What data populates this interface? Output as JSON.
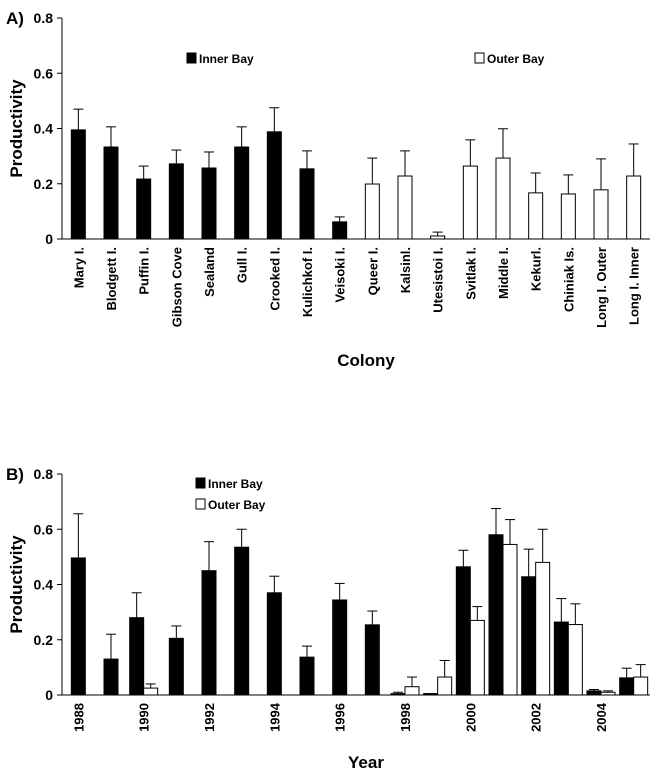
{
  "chart_data": [
    {
      "type": "bar",
      "panel_label": "A)",
      "ylabel": "Productivity",
      "xlabel": "Colony",
      "categories": [
        "Mary I.",
        "Blodgett I.",
        "Puffin I.",
        "Gibson Cove",
        "Sealand",
        "Gull I.",
        "Crooked I.",
        "Kulichkof I.",
        "Veisoki I.",
        "Queer I.",
        "Kalsinl.",
        "Utesistoi I.",
        "Svitlak I.",
        "Middle I.",
        "Kekurl.",
        "Chiniak Is.",
        "Long I. Outer",
        "Long I. Inner"
      ],
      "series": [
        {
          "name": "Inner Bay",
          "color": "#000000",
          "values": [
            0.395,
            0.333,
            0.217,
            0.272,
            0.257,
            0.333,
            0.388,
            0.254,
            0.062,
            null,
            null,
            null,
            null,
            null,
            null,
            null,
            null,
            null
          ],
          "errors": [
            0.075,
            0.073,
            0.047,
            0.05,
            0.058,
            0.073,
            0.087,
            0.065,
            0.018,
            null,
            null,
            null,
            null,
            null,
            null,
            null,
            null,
            null
          ]
        },
        {
          "name": "Outer Bay",
          "color": "#ffffff",
          "values": [
            null,
            null,
            null,
            null,
            null,
            null,
            null,
            null,
            null,
            0.199,
            0.228,
            0.011,
            0.264,
            0.293,
            0.167,
            0.163,
            0.178,
            0.228
          ],
          "errors": [
            null,
            null,
            null,
            null,
            null,
            null,
            null,
            null,
            null,
            0.094,
            0.091,
            0.014,
            0.095,
            0.106,
            0.072,
            0.069,
            0.112,
            0.116
          ]
        }
      ],
      "ylim": [
        0,
        0.8
      ],
      "yticks": [
        0,
        0.2,
        0.4,
        0.6,
        0.8
      ],
      "legend": "top-spread"
    },
    {
      "type": "bar",
      "panel_label": "B)",
      "ylabel": "Productivity",
      "xlabel": "Year",
      "categories": [
        "1988",
        null,
        "1990",
        null,
        "1992",
        null,
        "1994",
        null,
        "1996",
        null,
        "1998",
        null,
        "2000",
        null,
        "2002",
        null,
        "2004",
        null
      ],
      "series": [
        {
          "name": "Inner Bay",
          "color": "#000000",
          "values": [
            0.496,
            0.13,
            0.28,
            0.205,
            0.45,
            0.535,
            0.37,
            0.137,
            0.344,
            0.254,
            0.005,
            0.005,
            0.464,
            0.58,
            0.428,
            0.264,
            0.015,
            0.062
          ],
          "errors": [
            0.16,
            0.09,
            0.09,
            0.045,
            0.105,
            0.065,
            0.06,
            0.04,
            0.06,
            0.05,
            0.005,
            0,
            0.06,
            0.095,
            0.1,
            0.085,
            0.005,
            0.035
          ]
        },
        {
          "name": "Outer Bay",
          "color": "#ffffff",
          "values": [
            null,
            null,
            0.025,
            null,
            null,
            null,
            null,
            null,
            null,
            null,
            0.03,
            0.065,
            0.27,
            0.545,
            0.48,
            0.255,
            0.01,
            0.065
          ],
          "errors": [
            null,
            null,
            0.015,
            null,
            null,
            null,
            null,
            null,
            null,
            null,
            0.035,
            0.06,
            0.05,
            0.09,
            0.12,
            0.075,
            0.005,
            0.045
          ]
        }
      ],
      "ylim": [
        0,
        0.8
      ],
      "yticks": [
        0,
        0.2,
        0.4,
        0.6,
        0.8
      ],
      "legend": "top-left"
    }
  ]
}
